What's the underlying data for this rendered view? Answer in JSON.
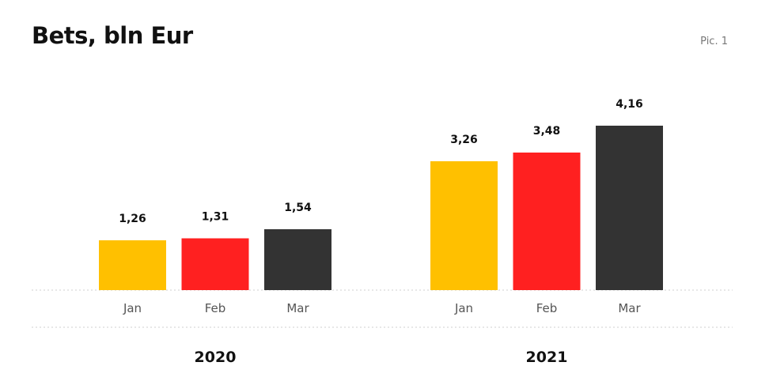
{
  "title": "Bets, bln Eur",
  "pic_label": "Pic. 1",
  "chart_data": {
    "type": "bar",
    "title": "Bets, bln Eur",
    "xlabel": "",
    "ylabel": "",
    "ylim": [
      0,
      4.5
    ],
    "grid": false,
    "groups": [
      {
        "label": "2020",
        "categories": [
          "Jan",
          "Feb",
          "Mar"
        ],
        "values": [
          1.26,
          1.31,
          1.54
        ],
        "value_labels": [
          "1,26",
          "1,31",
          "1,54"
        ]
      },
      {
        "label": "2021",
        "categories": [
          "Jan",
          "Feb",
          "Mar"
        ],
        "values": [
          3.26,
          3.48,
          4.16
        ],
        "value_labels": [
          "3,26",
          "3,48",
          "4,16"
        ]
      }
    ],
    "colors": {
      "Jan": "#FFC000",
      "Feb": "#FF2020",
      "Mar": "#333333"
    }
  }
}
